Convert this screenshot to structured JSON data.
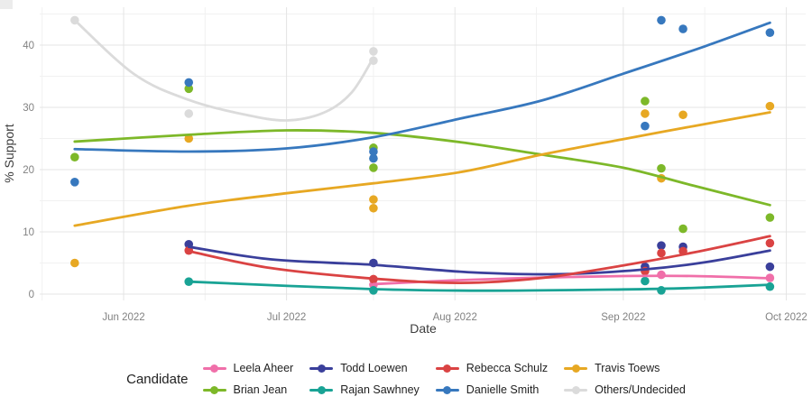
{
  "chart_data": {
    "type": "scatter",
    "title": "",
    "xlabel": "Date",
    "ylabel": "% Support",
    "legend_title": "Candidate",
    "legend_position": "bottom",
    "grid": true,
    "background": "#ffffff",
    "grid_color_major": "#e4e4e4",
    "grid_color_minor": "#f1f1f1",
    "axis_text_color": "#828282",
    "axis_title_color": "#3d3d3d",
    "point_radius": 4.8,
    "line_width": 2.8,
    "x_axis": {
      "major_ticks": [
        {
          "date": "2022-06-01",
          "label": "Jun 2022"
        },
        {
          "date": "2022-07-01",
          "label": "Jul 2022"
        },
        {
          "date": "2022-08-01",
          "label": "Aug 2022"
        },
        {
          "date": "2022-09-01",
          "label": "Sep 2022"
        },
        {
          "date": "2022-10-01",
          "label": "Oct 2022"
        }
      ],
      "minor_ticks": [
        "2022-05-17",
        "2022-06-16",
        "2022-07-17",
        "2022-08-16",
        "2022-09-16"
      ],
      "range": [
        "2022-05-16",
        "2022-10-04"
      ]
    },
    "y_axis": {
      "major_ticks": [
        0,
        10,
        20,
        30,
        40
      ],
      "minor_ticks": [
        5,
        15,
        25,
        35,
        45
      ],
      "range": [
        0,
        46
      ]
    },
    "series": [
      {
        "name": "Leela Aheer",
        "color": "#f06fa9",
        "points": [
          [
            "2022-07-17",
            1.5
          ],
          [
            "2022-09-08",
            3.1
          ],
          [
            "2022-09-28",
            2.6
          ]
        ],
        "trend": [
          [
            "2022-07-17",
            1.6
          ],
          [
            "2022-08-02",
            2.25
          ],
          [
            "2022-08-17",
            2.65
          ],
          [
            "2022-09-01",
            2.9
          ],
          [
            "2022-09-14",
            2.9
          ],
          [
            "2022-09-28",
            2.55
          ]
        ]
      },
      {
        "name": "Brian Jean",
        "color": "#7db829",
        "points": [
          [
            "2022-05-23",
            22
          ],
          [
            "2022-06-13",
            33
          ],
          [
            "2022-07-17",
            23.5
          ],
          [
            "2022-07-17",
            20.3
          ],
          [
            "2022-09-05",
            31
          ],
          [
            "2022-09-08",
            20.2
          ],
          [
            "2022-09-12",
            10.5
          ],
          [
            "2022-09-28",
            12.3
          ]
        ],
        "trend": [
          [
            "2022-05-23",
            24.5
          ],
          [
            "2022-06-13",
            25.6
          ],
          [
            "2022-07-01",
            26.3
          ],
          [
            "2022-07-17",
            25.9
          ],
          [
            "2022-08-02",
            24.4
          ],
          [
            "2022-08-17",
            22.4
          ],
          [
            "2022-09-01",
            20.3
          ],
          [
            "2022-09-14",
            17.4
          ],
          [
            "2022-09-28",
            14.3
          ]
        ]
      },
      {
        "name": "Todd Loewen",
        "color": "#3a3f9b",
        "points": [
          [
            "2022-06-13",
            8
          ],
          [
            "2022-07-17",
            5
          ],
          [
            "2022-09-05",
            4.4
          ],
          [
            "2022-09-08",
            7.8
          ],
          [
            "2022-09-12",
            7.6
          ],
          [
            "2022-09-28",
            4.4
          ]
        ],
        "trend": [
          [
            "2022-06-13",
            7.6
          ],
          [
            "2022-06-28",
            5.6
          ],
          [
            "2022-07-17",
            4.7
          ],
          [
            "2022-08-04",
            3.5
          ],
          [
            "2022-08-20",
            3.2
          ],
          [
            "2022-09-04",
            3.9
          ],
          [
            "2022-09-16",
            5.1
          ],
          [
            "2022-09-28",
            7.0
          ]
        ]
      },
      {
        "name": "Rajan Sawhney",
        "color": "#19a395",
        "points": [
          [
            "2022-06-13",
            2
          ],
          [
            "2022-07-17",
            0.6
          ],
          [
            "2022-09-05",
            2.1
          ],
          [
            "2022-09-08",
            0.6
          ],
          [
            "2022-09-28",
            1.2
          ]
        ],
        "trend": [
          [
            "2022-06-13",
            2.0
          ],
          [
            "2022-07-17",
            0.8
          ],
          [
            "2022-08-07",
            0.55
          ],
          [
            "2022-09-01",
            0.75
          ],
          [
            "2022-09-14",
            1.0
          ],
          [
            "2022-09-28",
            1.5
          ]
        ]
      },
      {
        "name": "Rebecca Schulz",
        "color": "#da4343",
        "points": [
          [
            "2022-06-13",
            7
          ],
          [
            "2022-07-17",
            2.4
          ],
          [
            "2022-09-05",
            3.7
          ],
          [
            "2022-09-08",
            6.6
          ],
          [
            "2022-09-12",
            6.9
          ],
          [
            "2022-09-28",
            8.2
          ]
        ],
        "trend": [
          [
            "2022-06-13",
            6.9
          ],
          [
            "2022-06-28",
            4.2
          ],
          [
            "2022-07-17",
            2.5
          ],
          [
            "2022-08-02",
            1.8
          ],
          [
            "2022-08-17",
            2.6
          ],
          [
            "2022-09-01",
            4.6
          ],
          [
            "2022-09-14",
            6.7
          ],
          [
            "2022-09-28",
            9.3
          ]
        ]
      },
      {
        "name": "Danielle Smith",
        "color": "#3778be",
        "points": [
          [
            "2022-05-23",
            18
          ],
          [
            "2022-06-13",
            34
          ],
          [
            "2022-07-17",
            22.9
          ],
          [
            "2022-07-17",
            21.8
          ],
          [
            "2022-09-05",
            27
          ],
          [
            "2022-09-08",
            44
          ],
          [
            "2022-09-12",
            42.6
          ],
          [
            "2022-09-28",
            42
          ]
        ],
        "trend": [
          [
            "2022-05-23",
            23.3
          ],
          [
            "2022-06-13",
            22.9
          ],
          [
            "2022-07-01",
            23.4
          ],
          [
            "2022-07-17",
            25.2
          ],
          [
            "2022-08-02",
            28.2
          ],
          [
            "2022-08-17",
            31.1
          ],
          [
            "2022-09-01",
            35.4
          ],
          [
            "2022-09-16",
            39.8
          ],
          [
            "2022-09-28",
            43.6
          ]
        ]
      },
      {
        "name": "Travis Toews",
        "color": "#e7a823",
        "points": [
          [
            "2022-05-23",
            5
          ],
          [
            "2022-06-13",
            25
          ],
          [
            "2022-07-17",
            15.2
          ],
          [
            "2022-07-17",
            13.8
          ],
          [
            "2022-09-05",
            29
          ],
          [
            "2022-09-08",
            18.6
          ],
          [
            "2022-09-12",
            28.8
          ],
          [
            "2022-09-28",
            30.2
          ]
        ],
        "trend": [
          [
            "2022-05-23",
            11.0
          ],
          [
            "2022-06-13",
            14.2
          ],
          [
            "2022-07-01",
            16.2
          ],
          [
            "2022-07-17",
            17.8
          ],
          [
            "2022-08-02",
            19.6
          ],
          [
            "2022-08-17",
            22.4
          ],
          [
            "2022-09-01",
            24.9
          ],
          [
            "2022-09-14",
            27.0
          ],
          [
            "2022-09-28",
            29.2
          ]
        ]
      },
      {
        "name": "Others/Undecided",
        "color": "#dbdbdb",
        "points": [
          [
            "2022-05-23",
            44
          ],
          [
            "2022-06-13",
            29
          ],
          [
            "2022-07-17",
            39
          ],
          [
            "2022-07-17",
            37.5
          ]
        ],
        "trend": [
          [
            "2022-05-23",
            44.0
          ],
          [
            "2022-06-03",
            35.3
          ],
          [
            "2022-06-13",
            31.2
          ],
          [
            "2022-06-23",
            28.9
          ],
          [
            "2022-07-01",
            27.9
          ],
          [
            "2022-07-08",
            29.2
          ],
          [
            "2022-07-13",
            32.4
          ],
          [
            "2022-07-17",
            38.0
          ]
        ]
      }
    ]
  }
}
